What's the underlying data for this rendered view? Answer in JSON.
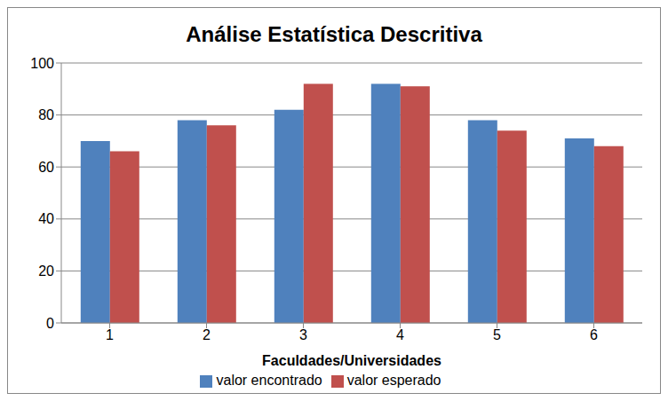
{
  "chart_data": {
    "type": "bar",
    "title": "Análise Estatística Descritiva",
    "x_label": "Faculdades/Universidades",
    "categories": [
      "1",
      "2",
      "3",
      "4",
      "5",
      "6"
    ],
    "series": [
      {
        "name": "valor encontrado",
        "color": "#4f81bd",
        "values": [
          70,
          78,
          82,
          92,
          78,
          71
        ]
      },
      {
        "name": "valor esperado",
        "color": "#c0504d",
        "values": [
          66,
          76,
          92,
          91,
          74,
          68
        ]
      }
    ],
    "ylim": [
      0,
      100
    ],
    "yticks": [
      0,
      20,
      40,
      60,
      80,
      100
    ],
    "grid": true,
    "legend": "bottom"
  }
}
